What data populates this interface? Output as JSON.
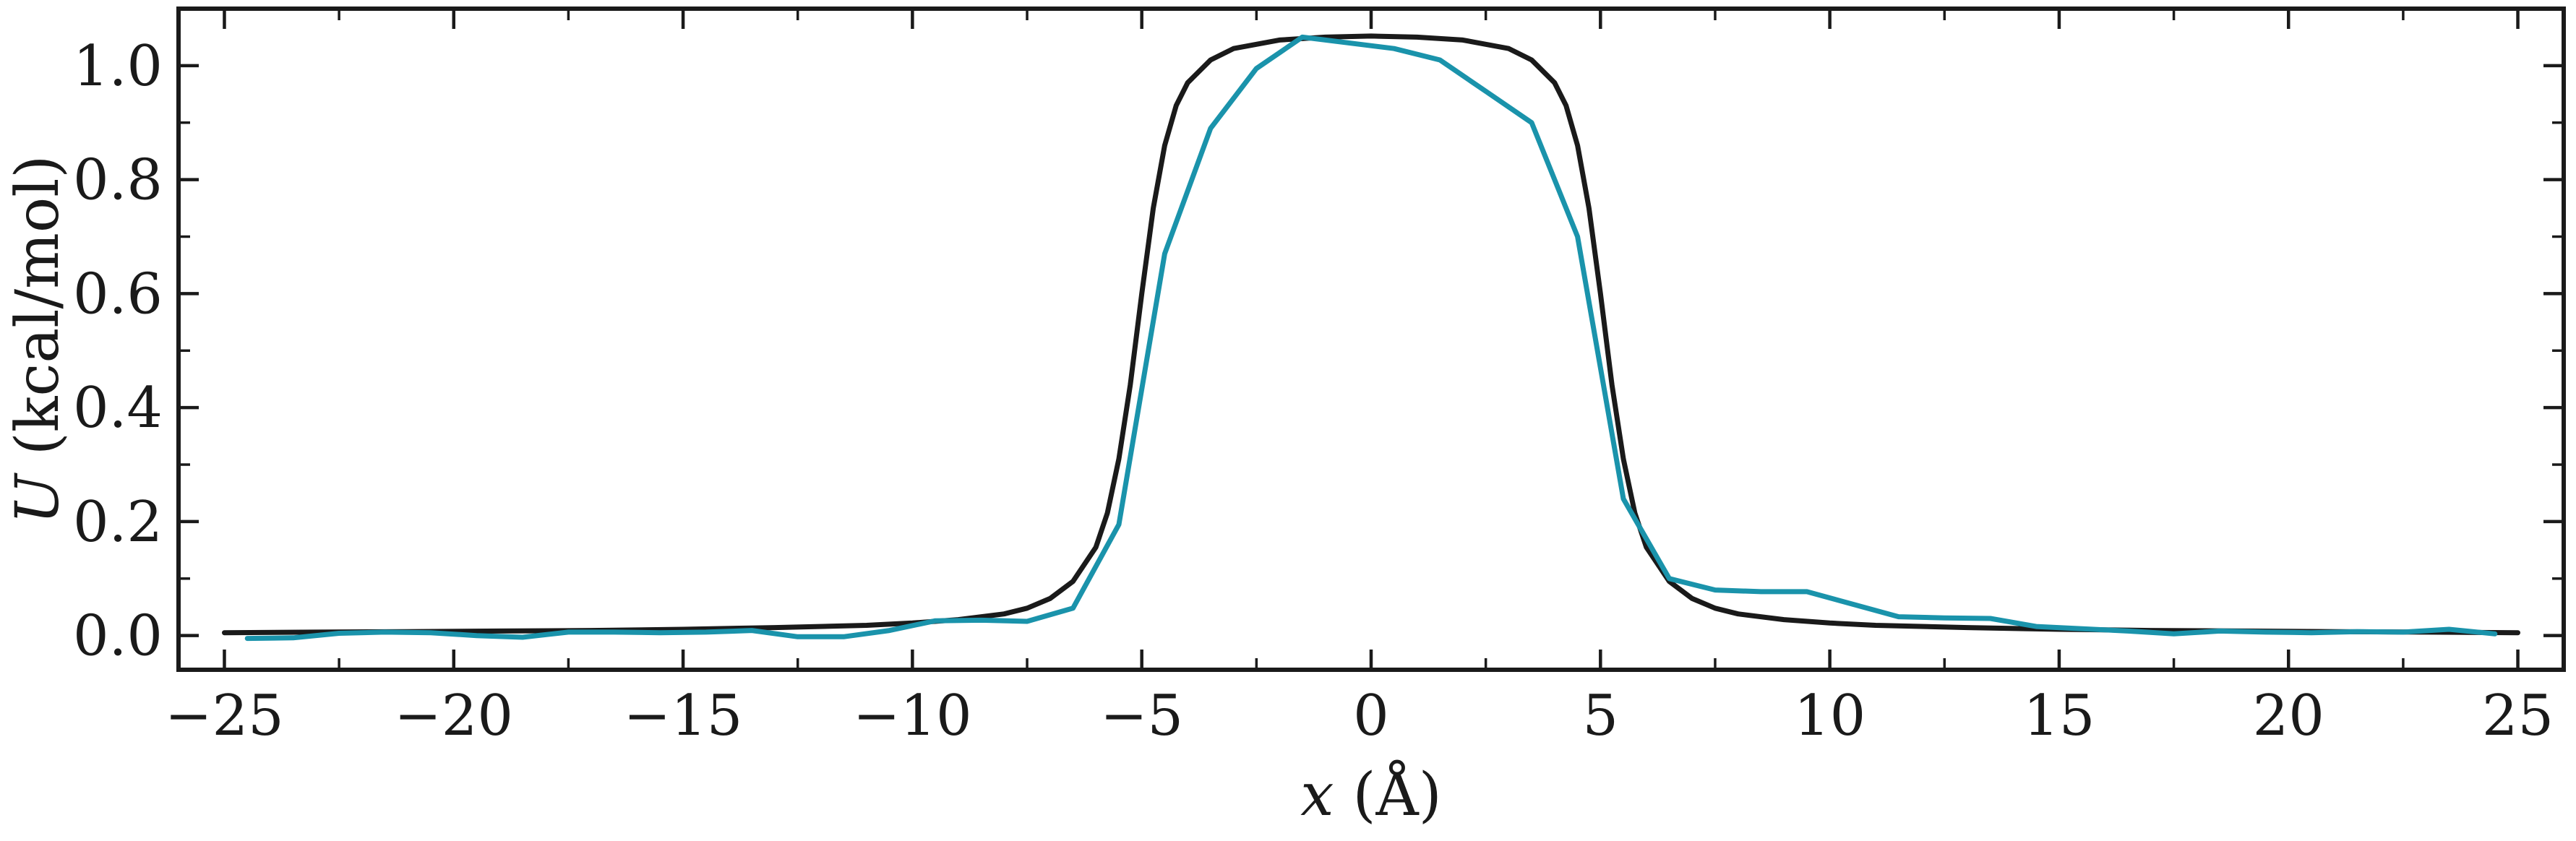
{
  "chart_data": {
    "type": "line",
    "title": "",
    "xlabel_var": "x",
    "xlabel_unit": " (Å)",
    "ylabel_var": "U",
    "ylabel_unit": " (kcal/mol)",
    "xlim": [
      -26,
      26
    ],
    "ylim": [
      -0.06,
      1.1
    ],
    "xticks": [
      -25,
      -20,
      -15,
      -10,
      -5,
      0,
      5,
      10,
      15,
      20,
      25
    ],
    "xtick_labels": [
      "−25",
      "−20",
      "−15",
      "−10",
      "−5",
      "0",
      "5",
      "10",
      "15",
      "20",
      "25"
    ],
    "yticks": [
      0.0,
      0.2,
      0.4,
      0.6,
      0.8,
      1.0
    ],
    "ytick_labels": [
      "0.0",
      "0.2",
      "0.4",
      "0.6",
      "0.8",
      "1.0"
    ],
    "grid": false,
    "series": [
      {
        "color": "#1a1a1a",
        "x": [
          -25,
          -23,
          -21,
          -19,
          -17,
          -15,
          -13,
          -11,
          -10,
          -9,
          -8,
          -7.5,
          -7,
          -6.5,
          -6,
          -5.75,
          -5.5,
          -5.25,
          -5,
          -4.75,
          -4.5,
          -4.25,
          -4,
          -3.5,
          -3,
          -2,
          -1,
          0,
          1,
          2,
          3,
          3.5,
          4,
          4.25,
          4.5,
          4.75,
          5,
          5.25,
          5.5,
          5.75,
          6,
          6.5,
          7,
          7.5,
          8,
          9,
          10,
          11,
          13,
          15,
          17,
          19,
          21,
          23,
          25
        ],
        "y": [
          0.005,
          0.006,
          0.007,
          0.008,
          0.009,
          0.011,
          0.014,
          0.018,
          0.022,
          0.028,
          0.038,
          0.048,
          0.065,
          0.095,
          0.155,
          0.215,
          0.31,
          0.44,
          0.6,
          0.75,
          0.86,
          0.93,
          0.97,
          1.01,
          1.03,
          1.045,
          1.05,
          1.052,
          1.05,
          1.045,
          1.03,
          1.01,
          0.97,
          0.93,
          0.86,
          0.75,
          0.6,
          0.44,
          0.31,
          0.215,
          0.155,
          0.095,
          0.065,
          0.048,
          0.038,
          0.028,
          0.022,
          0.018,
          0.014,
          0.011,
          0.009,
          0.008,
          0.007,
          0.006,
          0.005
        ]
      },
      {
        "color": "#1a93ab",
        "x": [
          -24.5,
          -23.5,
          -22.5,
          -21.5,
          -20.5,
          -19.5,
          -18.5,
          -17.5,
          -16.5,
          -15.5,
          -14.5,
          -13.5,
          -12.5,
          -11.5,
          -10.5,
          -9.5,
          -8.5,
          -7.5,
          -6.5,
          -5.5,
          -4.5,
          -3.5,
          -2.5,
          -1.5,
          -0.5,
          0.5,
          1.5,
          2.5,
          3.5,
          4.5,
          5.5,
          6.5,
          7.5,
          8.5,
          9.5,
          10.5,
          11.5,
          12.5,
          13.5,
          14.5,
          15.5,
          16.5,
          17.5,
          18.5,
          19.5,
          20.5,
          21.5,
          22.5,
          23.5,
          24.5
        ],
        "y": [
          -0.005,
          -0.004,
          0.004,
          0.006,
          0.005,
          0.0,
          -0.003,
          0.006,
          0.006,
          0.005,
          0.006,
          0.009,
          -0.002,
          -0.002,
          0.009,
          0.026,
          0.027,
          0.025,
          0.048,
          0.195,
          0.67,
          0.89,
          0.995,
          1.05,
          1.04,
          1.03,
          1.01,
          0.955,
          0.9,
          0.7,
          0.24,
          0.1,
          0.08,
          0.077,
          0.077,
          0.055,
          0.033,
          0.031,
          0.03,
          0.016,
          0.012,
          0.008,
          0.003,
          0.008,
          0.006,
          0.005,
          0.007,
          0.006,
          0.011,
          0.003
        ]
      }
    ]
  }
}
